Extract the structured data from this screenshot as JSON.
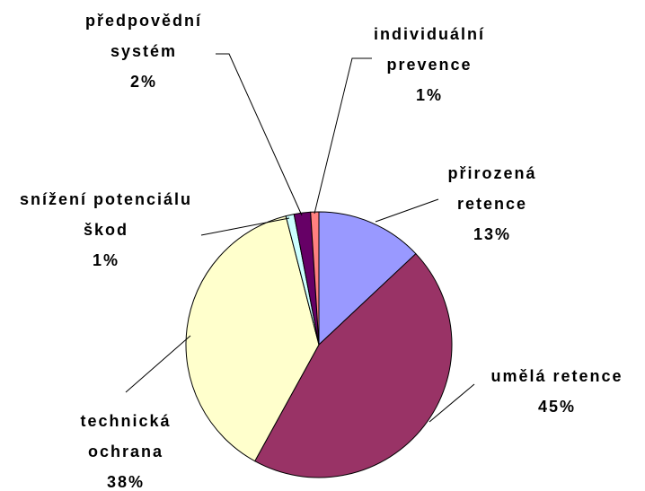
{
  "chart_data": {
    "type": "pie",
    "categories": [
      "přirozená retence",
      "umělá retence",
      "technická ochrana",
      "snížení potenciálu škod",
      "předpovědní systém",
      "individuální prevence"
    ],
    "values": [
      13,
      45,
      38,
      1,
      2,
      1
    ],
    "value_labels": [
      "13%",
      "45%",
      "38%",
      "1%",
      "2%",
      "1%"
    ],
    "colors": [
      "#9999ff",
      "#993366",
      "#ffffcc",
      "#ccffff",
      "#660066",
      "#ff8080"
    ]
  }
}
